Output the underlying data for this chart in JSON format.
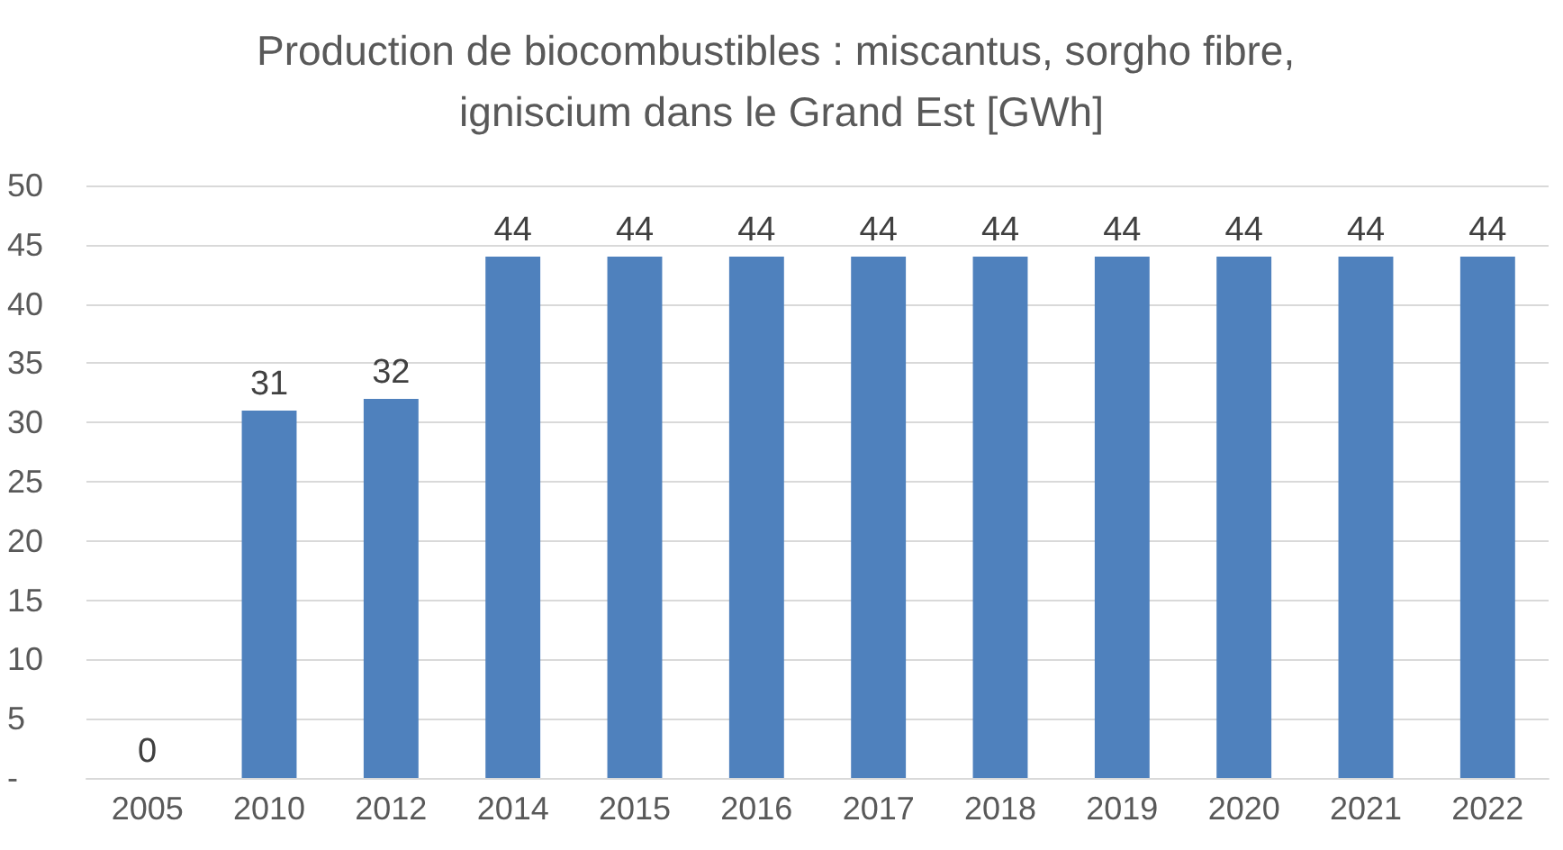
{
  "chart_data": {
    "type": "bar",
    "title": "Production de biocombustibles : miscantus, sorgho fibre, igniscium dans le Grand Est [GWh]",
    "categories": [
      "2005",
      "2010",
      "2012",
      "2014",
      "2015",
      "2016",
      "2017",
      "2018",
      "2019",
      "2020",
      "2021",
      "2022"
    ],
    "values": [
      0,
      31,
      32,
      44,
      44,
      44,
      44,
      44,
      44,
      44,
      44,
      44
    ],
    "color": "#4f81bd",
    "ylim": [
      0,
      50
    ],
    "yticks": [
      {
        "value": 0,
        "label": "-"
      },
      5,
      10,
      15,
      20,
      25,
      30,
      35,
      40,
      45,
      50
    ],
    "grid": "y",
    "data_labels": true
  }
}
